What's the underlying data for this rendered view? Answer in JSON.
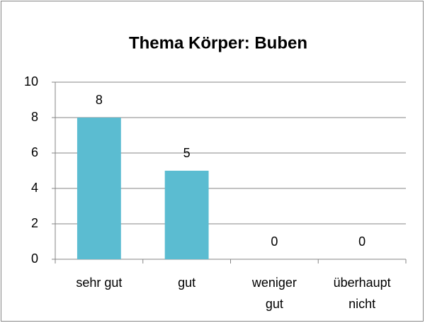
{
  "chart_data": {
    "type": "bar",
    "title": "Thema Körper: Buben",
    "categories": [
      "sehr gut",
      "gut",
      "weniger gut",
      "überhaupt nicht"
    ],
    "values": [
      8,
      5,
      0,
      0
    ],
    "color": "#5bbcd1",
    "ylim": [
      0,
      10
    ],
    "yticks": [
      0,
      2,
      4,
      6,
      8,
      10
    ],
    "grid": true
  }
}
